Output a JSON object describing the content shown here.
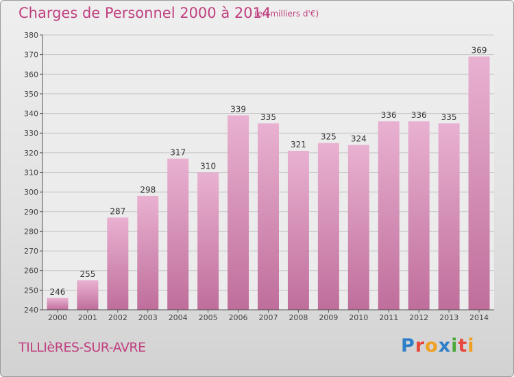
{
  "header": {
    "title": "Charges de Personnel 2000 à 2014",
    "unit": "(en milliers d'€)"
  },
  "footer": {
    "commune": "TILLIèRES-SUR-AVRE",
    "logo": "Proxiti",
    "logo_colors": [
      "#2c7fc8",
      "#e8463a",
      "#f0a020",
      "#2c7fc8",
      "#4aa83a",
      "#e8463a",
      "#f0a020"
    ]
  },
  "colors": {
    "bar_light": "#e9b1d1",
    "bar_dark": "#bf6e9b",
    "text": "#c0407f",
    "grid": "#c7c7c7"
  },
  "chart_data": {
    "type": "bar",
    "categories": [
      "2000",
      "2001",
      "2002",
      "2003",
      "2004",
      "2005",
      "2006",
      "2007",
      "2008",
      "2009",
      "2010",
      "2011",
      "2012",
      "2013",
      "2014"
    ],
    "values": [
      246,
      255,
      287,
      298,
      317,
      310,
      339,
      335,
      321,
      325,
      324,
      336,
      336,
      335,
      369
    ],
    "ylim": [
      240,
      380
    ],
    "yticks": [
      240,
      250,
      260,
      270,
      280,
      290,
      300,
      310,
      320,
      330,
      340,
      350,
      360,
      370,
      380
    ],
    "grid": true
  }
}
